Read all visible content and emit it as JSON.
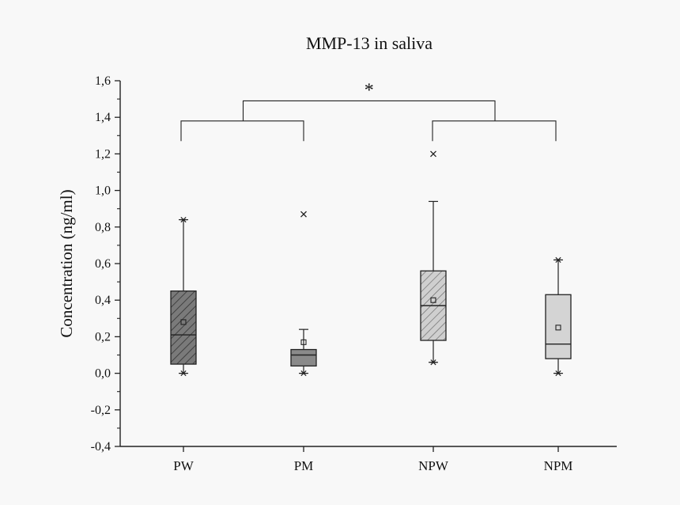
{
  "chart_data": {
    "type": "box",
    "title": "MMP-13 in saliva",
    "xlabel": "",
    "ylabel": "Concentration (ng/ml)",
    "ylim": [
      -0.4,
      1.6
    ],
    "yticks": [
      "-0,4",
      "-0,2",
      "0,0",
      "0,2",
      "0,4",
      "0,6",
      "0,8",
      "1,0",
      "1,2",
      "1,4",
      "1,6"
    ],
    "categories": [
      "PW",
      "PM",
      "NPW",
      "NPM"
    ],
    "boxes": [
      {
        "name": "PW",
        "q1": 0.05,
        "median": 0.21,
        "q3": 0.45,
        "mean": 0.28,
        "whisker_low": 0.0,
        "whisker_high": 0.84,
        "min": 0.0,
        "max": 0.84,
        "outliers": [],
        "fill": "#7a7a7a",
        "hatch": true
      },
      {
        "name": "PM",
        "q1": 0.04,
        "median": 0.1,
        "q3": 0.13,
        "mean": 0.17,
        "whisker_low": 0.0,
        "whisker_high": 0.24,
        "min": 0.0,
        "max": null,
        "outliers": [
          0.87
        ],
        "fill": "#8a8a8a",
        "hatch": false
      },
      {
        "name": "NPW",
        "q1": 0.18,
        "median": 0.37,
        "q3": 0.56,
        "mean": 0.4,
        "whisker_low": 0.06,
        "whisker_high": 0.94,
        "min": 0.06,
        "max": null,
        "outliers": [
          1.2
        ],
        "fill": "#cfcfcf",
        "hatch": true
      },
      {
        "name": "NPM",
        "q1": 0.08,
        "median": 0.16,
        "q3": 0.43,
        "mean": 0.25,
        "whisker_low": 0.0,
        "whisker_high": 0.62,
        "min": 0.0,
        "max": 0.62,
        "outliers": [],
        "fill": "#d4d4d4",
        "hatch": false
      }
    ],
    "significance": {
      "label": "*",
      "left_group": [
        "PW",
        "PM"
      ],
      "right_group": [
        "NPW",
        "NPM"
      ],
      "lower_bracket_y": 1.38,
      "lower_bracket_bottom": 1.27,
      "top_bracket_y": 1.49
    },
    "grid": false
  }
}
